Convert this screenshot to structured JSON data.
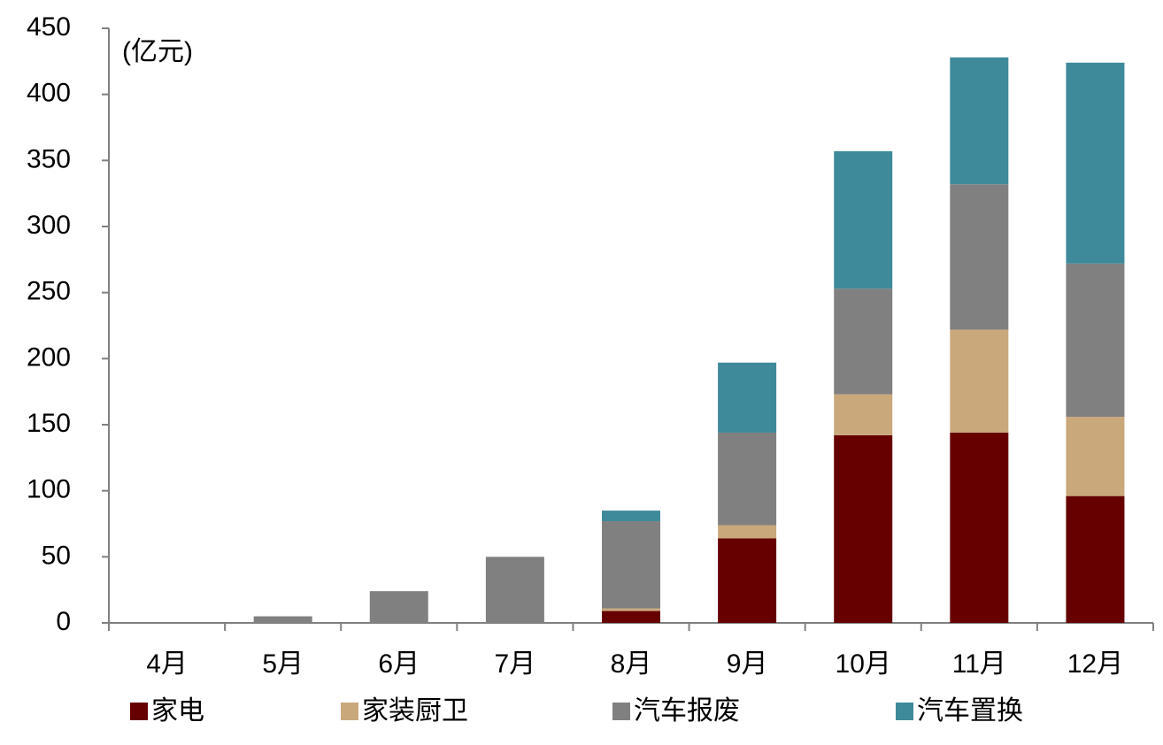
{
  "chart_data": {
    "type": "stacked_bar",
    "unit_label": "(亿元)",
    "categories": [
      "4月",
      "5月",
      "6月",
      "7月",
      "8月",
      "9月",
      "10月",
      "11月",
      "12月"
    ],
    "series": [
      {
        "name": "家电",
        "color": "#660000",
        "values": [
          0,
          0,
          0,
          0,
          9,
          64,
          142,
          144,
          96
        ]
      },
      {
        "name": "家装厨卫",
        "color": "#c9a87c",
        "values": [
          0,
          0,
          0,
          0,
          2,
          10,
          31,
          78,
          60
        ]
      },
      {
        "name": "汽车报废",
        "color": "#808080",
        "values": [
          0,
          5,
          24,
          50,
          66,
          70,
          80,
          110,
          116
        ]
      },
      {
        "name": "汽车置换",
        "color": "#3e8a9a",
        "values": [
          0,
          0,
          0,
          0,
          8,
          53,
          104,
          96,
          152
        ]
      }
    ],
    "ylim": [
      0,
      450
    ],
    "yticks": [
      0,
      50,
      100,
      150,
      200,
      250,
      300,
      350,
      400,
      450
    ]
  }
}
